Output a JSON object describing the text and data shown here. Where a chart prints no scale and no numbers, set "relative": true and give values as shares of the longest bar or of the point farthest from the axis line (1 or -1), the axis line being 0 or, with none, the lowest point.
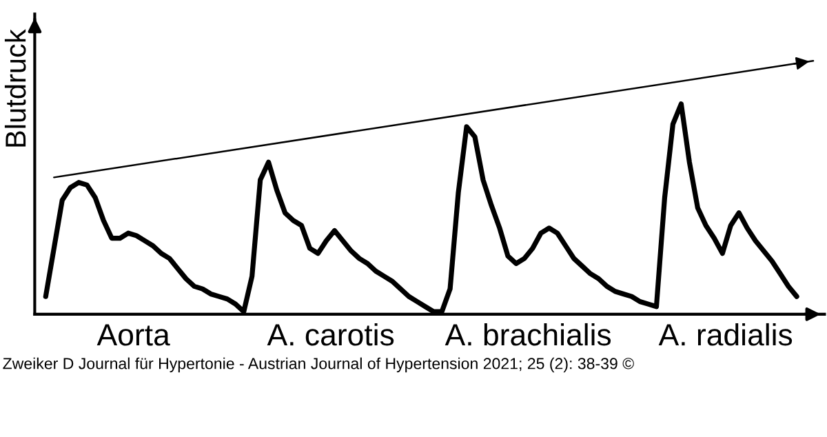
{
  "chart_data": {
    "type": "line",
    "relative": true,
    "ylabel": "Blutdruck",
    "categories": [
      null,
      null,
      null,
      null,
      null,
      null,
      null,
      null,
      null,
      null,
      null,
      null,
      null,
      null,
      null,
      null,
      null,
      null,
      null,
      null,
      null,
      null,
      null,
      null,
      null,
      null,
      null,
      null,
      null,
      null,
      null,
      null,
      null,
      null,
      null,
      null,
      null,
      null,
      null,
      null,
      null,
      null,
      null,
      null,
      null,
      null,
      null,
      null,
      null,
      null,
      null,
      null,
      null,
      null,
      null,
      null,
      null,
      null,
      null,
      null,
      null,
      null,
      null,
      null,
      null,
      null,
      null,
      null,
      null,
      null,
      null,
      null,
      null,
      null,
      null,
      null,
      null,
      null,
      null,
      null,
      null,
      null,
      null,
      null,
      null,
      null,
      null,
      null,
      null,
      null,
      null,
      null,
      null,
      null
    ],
    "series": [
      {
        "color": "#000000",
        "values": [
          0.07,
          0.26,
          0.45,
          0.5,
          0.52,
          0.51,
          0.46,
          0.37,
          0.3,
          0.3,
          0.32,
          0.31,
          0.29,
          0.27,
          0.24,
          0.22,
          0.18,
          0.14,
          0.11,
          0.1,
          0.08,
          0.07,
          0.06,
          0.04,
          0.01,
          0.15,
          0.53,
          0.6,
          0.49,
          0.4,
          0.37,
          0.35,
          0.26,
          0.24,
          0.29,
          0.33,
          0.29,
          0.25,
          0.22,
          0.2,
          0.17,
          0.15,
          0.13,
          0.1,
          0.07,
          0.05,
          0.03,
          0.01,
          0.01,
          0.1,
          0.48,
          0.74,
          0.7,
          0.53,
          0.43,
          0.34,
          0.23,
          0.2,
          0.22,
          0.26,
          0.32,
          0.34,
          0.32,
          0.27,
          0.22,
          0.19,
          0.16,
          0.14,
          0.11,
          0.09,
          0.08,
          0.07,
          0.05,
          0.04,
          0.03,
          0.46,
          0.75,
          0.83,
          0.6,
          0.42,
          0.35,
          0.3,
          0.24,
          0.35,
          0.4,
          0.34,
          0.29,
          0.25,
          0.21,
          0.16,
          0.11,
          0.07,
          null,
          null
        ]
      },
      {
        "type": "line",
        "color": "#000000",
        "values": [
          null,
          0.54,
          null,
          null,
          null,
          null,
          null,
          null,
          null,
          null,
          null,
          null,
          null,
          null,
          null,
          null,
          null,
          null,
          null,
          null,
          null,
          null,
          null,
          null,
          null,
          null,
          null,
          null,
          null,
          null,
          null,
          null,
          null,
          null,
          null,
          null,
          null,
          null,
          null,
          null,
          null,
          null,
          null,
          null,
          null,
          null,
          null,
          null,
          null,
          null,
          null,
          null,
          null,
          null,
          null,
          null,
          null,
          null,
          null,
          null,
          null,
          null,
          null,
          null,
          null,
          null,
          null,
          null,
          null,
          null,
          null,
          null,
          null,
          null,
          null,
          null,
          null,
          null,
          null,
          null,
          null,
          null,
          null,
          null,
          null,
          null,
          null,
          null,
          null,
          null,
          null,
          null,
          null,
          1.0
        ]
      }
    ],
    "annotations": [
      "Aorta",
      "A. carotis",
      "A. brachialis",
      "A. radialis",
      "Zweiker D Journal für Hypertonie - Austrian Journal of Hypertension 2021; 25 (2): 38-39 ©"
    ]
  }
}
